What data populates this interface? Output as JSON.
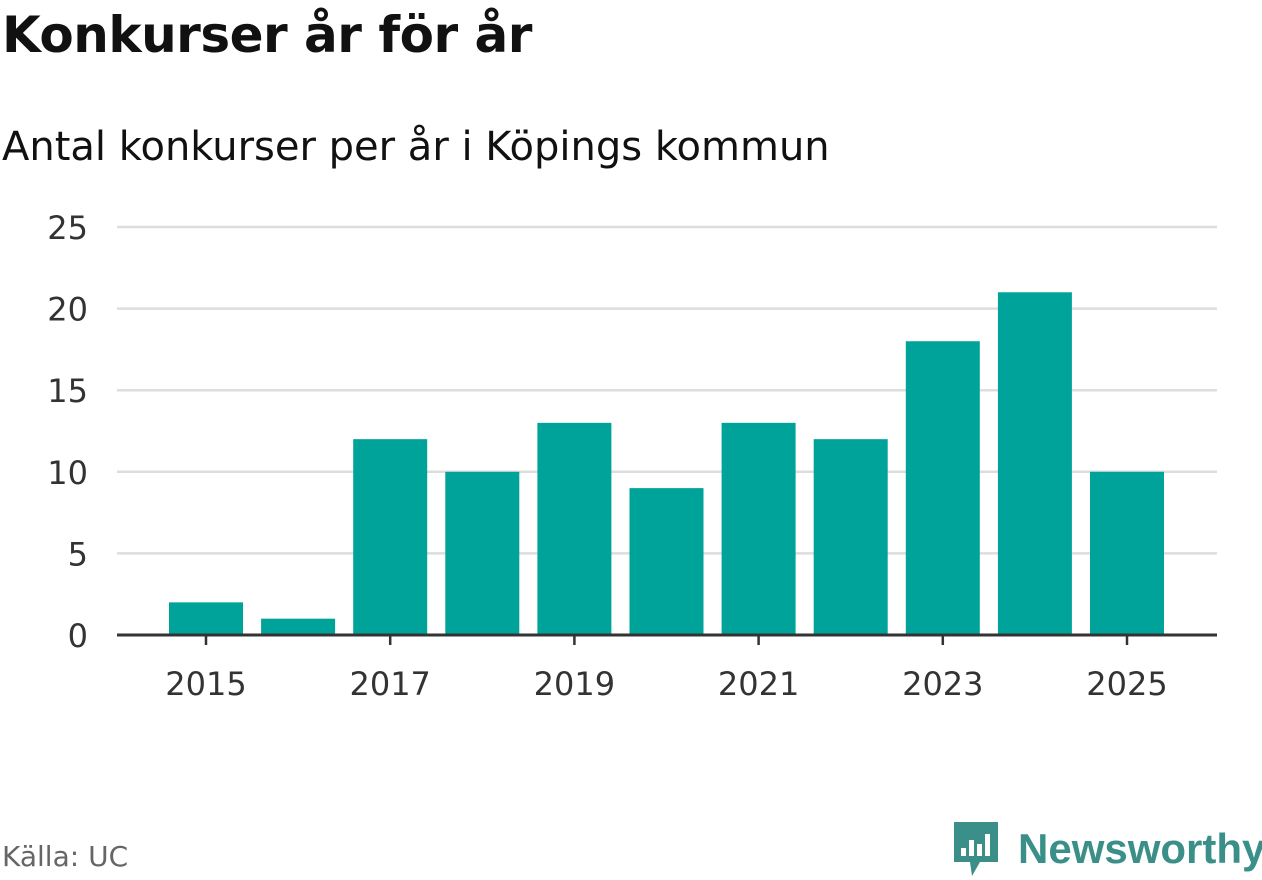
{
  "colors": {
    "bar": "#00a39a",
    "grid": "#dddddd",
    "axis": "#333333",
    "tick_text": "#333333",
    "brand": "#3a8f89"
  },
  "source_text": "Källa: UC",
  "brand": {
    "name": "Newsworthy",
    "logo_icon": "newsworthy-logo-icon"
  },
  "chart_data": {
    "type": "bar",
    "title": "Konkurser år för år",
    "subtitle": "Antal konkurser per år i Köpings kommun",
    "xlabel": "",
    "ylabel": "",
    "categories": [
      "2015",
      "2016",
      "2017",
      "2018",
      "2019",
      "2020",
      "2021",
      "2022",
      "2023",
      "2024",
      "2025"
    ],
    "values": [
      2,
      1,
      12,
      10,
      13,
      9,
      13,
      12,
      18,
      21,
      10
    ],
    "ylim": [
      0,
      25
    ],
    "yticks": [
      "0",
      "5",
      "10",
      "15",
      "20",
      "25"
    ],
    "xticks": [
      "2015",
      "2017",
      "2019",
      "2021",
      "2023",
      "2025"
    ],
    "grid": true,
    "legend": "none"
  }
}
